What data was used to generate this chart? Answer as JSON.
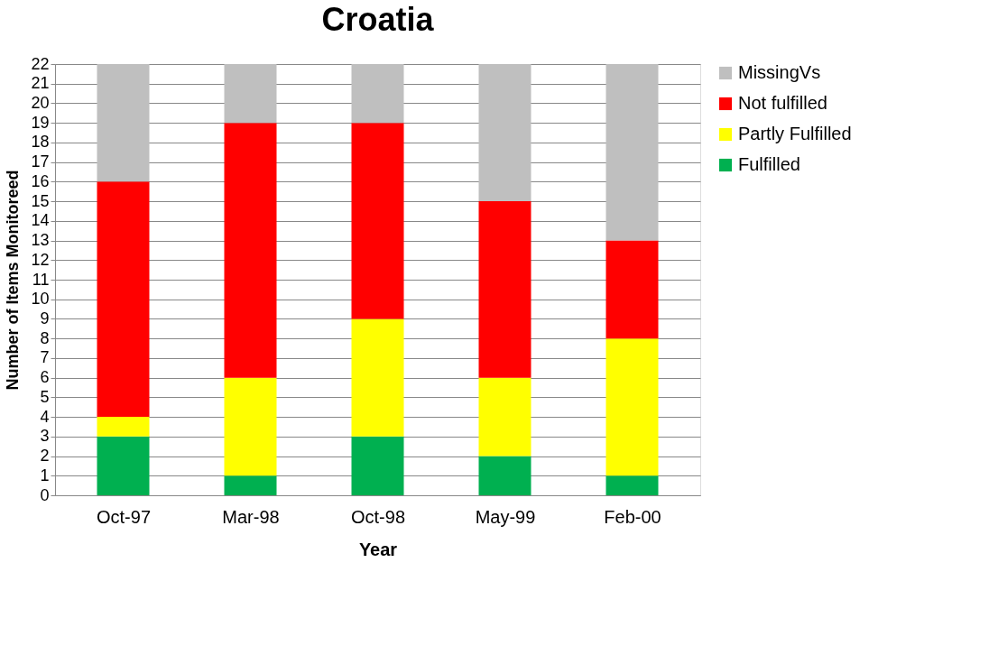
{
  "chart_data": {
    "type": "bar",
    "title": "Croatia",
    "xlabel": "Year",
    "ylabel": "Number of Items Monitoreed",
    "categories": [
      "Oct-97",
      "Mar-98",
      "Oct-98",
      "May-99",
      "Feb-00"
    ],
    "stacked": true,
    "series": [
      {
        "name": "Fulfilled",
        "color": "#00b050",
        "values": [
          3,
          1,
          3,
          2,
          1
        ]
      },
      {
        "name": "Partly Fulfilled",
        "color": "#ffff00",
        "values": [
          1,
          5,
          6,
          4,
          7
        ]
      },
      {
        "name": "Not fulfilled",
        "color": "#ff0000",
        "values": [
          12,
          13,
          10,
          9,
          5
        ]
      },
      {
        "name": "MissingVs",
        "color": "#bfbfbf",
        "values": [
          6,
          3,
          3,
          7,
          9
        ]
      }
    ],
    "ylim": [
      0,
      22
    ],
    "yticks": [
      0,
      1,
      2,
      3,
      4,
      5,
      6,
      7,
      8,
      9,
      10,
      11,
      12,
      13,
      14,
      15,
      16,
      17,
      18,
      19,
      20,
      21,
      22
    ],
    "grid": "y",
    "legend": "right"
  }
}
